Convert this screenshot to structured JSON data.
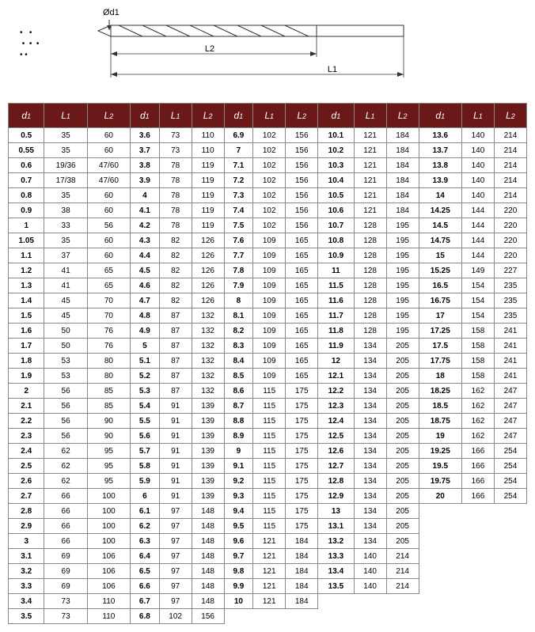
{
  "diagram": {
    "d1_label": "Ød1",
    "l2_label": "L2",
    "l1_label": "L1"
  },
  "table": {
    "header_groups": 5,
    "columns": [
      "d1",
      "L1",
      "L2"
    ],
    "header_bg": "#6a1818",
    "header_fg": "#ffffff",
    "border_color": "#888888",
    "d1_bold": true,
    "rows": [
      [
        [
          "0.5",
          "35",
          "60"
        ],
        [
          "3.6",
          "73",
          "110"
        ],
        [
          "6.9",
          "102",
          "156"
        ],
        [
          "10.1",
          "121",
          "184"
        ],
        [
          "13.6",
          "140",
          "214"
        ]
      ],
      [
        [
          "0.55",
          "35",
          "60"
        ],
        [
          "3.7",
          "73",
          "110"
        ],
        [
          "7",
          "102",
          "156"
        ],
        [
          "10.2",
          "121",
          "184"
        ],
        [
          "13.7",
          "140",
          "214"
        ]
      ],
      [
        [
          "0.6",
          "19/36",
          "47/60"
        ],
        [
          "3.8",
          "78",
          "119"
        ],
        [
          "7.1",
          "102",
          "156"
        ],
        [
          "10.3",
          "121",
          "184"
        ],
        [
          "13.8",
          "140",
          "214"
        ]
      ],
      [
        [
          "0.7",
          "17/38",
          "47/60"
        ],
        [
          "3.9",
          "78",
          "119"
        ],
        [
          "7.2",
          "102",
          "156"
        ],
        [
          "10.4",
          "121",
          "184"
        ],
        [
          "13.9",
          "140",
          "214"
        ]
      ],
      [
        [
          "0.8",
          "35",
          "60"
        ],
        [
          "4",
          "78",
          "119"
        ],
        [
          "7.3",
          "102",
          "156"
        ],
        [
          "10.5",
          "121",
          "184"
        ],
        [
          "14",
          "140",
          "214"
        ]
      ],
      [
        [
          "0.9",
          "38",
          "60"
        ],
        [
          "4.1",
          "78",
          "119"
        ],
        [
          "7.4",
          "102",
          "156"
        ],
        [
          "10.6",
          "121",
          "184"
        ],
        [
          "14.25",
          "144",
          "220"
        ]
      ],
      [
        [
          "1",
          "33",
          "56"
        ],
        [
          "4.2",
          "78",
          "119"
        ],
        [
          "7.5",
          "102",
          "156"
        ],
        [
          "10.7",
          "128",
          "195"
        ],
        [
          "14.5",
          "144",
          "220"
        ]
      ],
      [
        [
          "1.05",
          "35",
          "60"
        ],
        [
          "4.3",
          "82",
          "126"
        ],
        [
          "7.6",
          "109",
          "165"
        ],
        [
          "10.8",
          "128",
          "195"
        ],
        [
          "14.75",
          "144",
          "220"
        ]
      ],
      [
        [
          "1.1",
          "37",
          "60"
        ],
        [
          "4.4",
          "82",
          "126"
        ],
        [
          "7.7",
          "109",
          "165"
        ],
        [
          "10.9",
          "128",
          "195"
        ],
        [
          "15",
          "144",
          "220"
        ]
      ],
      [
        [
          "1.2",
          "41",
          "65"
        ],
        [
          "4.5",
          "82",
          "126"
        ],
        [
          "7.8",
          "109",
          "165"
        ],
        [
          "11",
          "128",
          "195"
        ],
        [
          "15.25",
          "149",
          "227"
        ]
      ],
      [
        [
          "1.3",
          "41",
          "65"
        ],
        [
          "4.6",
          "82",
          "126"
        ],
        [
          "7.9",
          "109",
          "165"
        ],
        [
          "11.5",
          "128",
          "195"
        ],
        [
          "16.5",
          "154",
          "235"
        ]
      ],
      [
        [
          "1.4",
          "45",
          "70"
        ],
        [
          "4.7",
          "82",
          "126"
        ],
        [
          "8",
          "109",
          "165"
        ],
        [
          "11.6",
          "128",
          "195"
        ],
        [
          "16.75",
          "154",
          "235"
        ]
      ],
      [
        [
          "1.5",
          "45",
          "70"
        ],
        [
          "4.8",
          "87",
          "132"
        ],
        [
          "8.1",
          "109",
          "165"
        ],
        [
          "11.7",
          "128",
          "195"
        ],
        [
          "17",
          "154",
          "235"
        ]
      ],
      [
        [
          "1.6",
          "50",
          "76"
        ],
        [
          "4.9",
          "87",
          "132"
        ],
        [
          "8.2",
          "109",
          "165"
        ],
        [
          "11.8",
          "128",
          "195"
        ],
        [
          "17.25",
          "158",
          "241"
        ]
      ],
      [
        [
          "1.7",
          "50",
          "76"
        ],
        [
          "5",
          "87",
          "132"
        ],
        [
          "8.3",
          "109",
          "165"
        ],
        [
          "11.9",
          "134",
          "205"
        ],
        [
          "17.5",
          "158",
          "241"
        ]
      ],
      [
        [
          "1.8",
          "53",
          "80"
        ],
        [
          "5.1",
          "87",
          "132"
        ],
        [
          "8.4",
          "109",
          "165"
        ],
        [
          "12",
          "134",
          "205"
        ],
        [
          "17.75",
          "158",
          "241"
        ]
      ],
      [
        [
          "1.9",
          "53",
          "80"
        ],
        [
          "5.2",
          "87",
          "132"
        ],
        [
          "8.5",
          "109",
          "165"
        ],
        [
          "12.1",
          "134",
          "205"
        ],
        [
          "18",
          "158",
          "241"
        ]
      ],
      [
        [
          "2",
          "56",
          "85"
        ],
        [
          "5.3",
          "87",
          "132"
        ],
        [
          "8.6",
          "115",
          "175"
        ],
        [
          "12.2",
          "134",
          "205"
        ],
        [
          "18.25",
          "162",
          "247"
        ]
      ],
      [
        [
          "2.1",
          "56",
          "85"
        ],
        [
          "5.4",
          "91",
          "139"
        ],
        [
          "8.7",
          "115",
          "175"
        ],
        [
          "12.3",
          "134",
          "205"
        ],
        [
          "18.5",
          "162",
          "247"
        ]
      ],
      [
        [
          "2.2",
          "56",
          "90"
        ],
        [
          "5.5",
          "91",
          "139"
        ],
        [
          "8.8",
          "115",
          "175"
        ],
        [
          "12.4",
          "134",
          "205"
        ],
        [
          "18.75",
          "162",
          "247"
        ]
      ],
      [
        [
          "2.3",
          "56",
          "90"
        ],
        [
          "5.6",
          "91",
          "139"
        ],
        [
          "8.9",
          "115",
          "175"
        ],
        [
          "12.5",
          "134",
          "205"
        ],
        [
          "19",
          "162",
          "247"
        ]
      ],
      [
        [
          "2.4",
          "62",
          "95"
        ],
        [
          "5.7",
          "91",
          "139"
        ],
        [
          "9",
          "115",
          "175"
        ],
        [
          "12.6",
          "134",
          "205"
        ],
        [
          "19.25",
          "166",
          "254"
        ]
      ],
      [
        [
          "2.5",
          "62",
          "95"
        ],
        [
          "5.8",
          "91",
          "139"
        ],
        [
          "9.1",
          "115",
          "175"
        ],
        [
          "12.7",
          "134",
          "205"
        ],
        [
          "19.5",
          "166",
          "254"
        ]
      ],
      [
        [
          "2.6",
          "62",
          "95"
        ],
        [
          "5.9",
          "91",
          "139"
        ],
        [
          "9.2",
          "115",
          "175"
        ],
        [
          "12.8",
          "134",
          "205"
        ],
        [
          "19.75",
          "166",
          "254"
        ]
      ],
      [
        [
          "2.7",
          "66",
          "100"
        ],
        [
          "6",
          "91",
          "139"
        ],
        [
          "9.3",
          "115",
          "175"
        ],
        [
          "12.9",
          "134",
          "205"
        ],
        [
          "20",
          "166",
          "254"
        ]
      ],
      [
        [
          "2.8",
          "66",
          "100"
        ],
        [
          "6.1",
          "97",
          "148"
        ],
        [
          "9.4",
          "115",
          "175"
        ],
        [
          "13",
          "134",
          "205"
        ],
        null
      ],
      [
        [
          "2.9",
          "66",
          "100"
        ],
        [
          "6.2",
          "97",
          "148"
        ],
        [
          "9.5",
          "115",
          "175"
        ],
        [
          "13.1",
          "134",
          "205"
        ],
        null
      ],
      [
        [
          "3",
          "66",
          "100"
        ],
        [
          "6.3",
          "97",
          "148"
        ],
        [
          "9.6",
          "121",
          "184"
        ],
        [
          "13.2",
          "134",
          "205"
        ],
        null
      ],
      [
        [
          "3.1",
          "69",
          "106"
        ],
        [
          "6.4",
          "97",
          "148"
        ],
        [
          "9.7",
          "121",
          "184"
        ],
        [
          "13.3",
          "140",
          "214"
        ],
        null
      ],
      [
        [
          "3.2",
          "69",
          "106"
        ],
        [
          "6.5",
          "97",
          "148"
        ],
        [
          "9.8",
          "121",
          "184"
        ],
        [
          "13.4",
          "140",
          "214"
        ],
        null
      ],
      [
        [
          "3.3",
          "69",
          "106"
        ],
        [
          "6.6",
          "97",
          "148"
        ],
        [
          "9.9",
          "121",
          "184"
        ],
        [
          "13.5",
          "140",
          "214"
        ],
        null
      ],
      [
        [
          "3.4",
          "73",
          "110"
        ],
        [
          "6.7",
          "97",
          "148"
        ],
        [
          "10",
          "121",
          "184"
        ],
        null,
        null
      ],
      [
        [
          "3.5",
          "73",
          "110"
        ],
        [
          "6.8",
          "102",
          "156"
        ],
        null,
        null,
        null
      ]
    ]
  }
}
